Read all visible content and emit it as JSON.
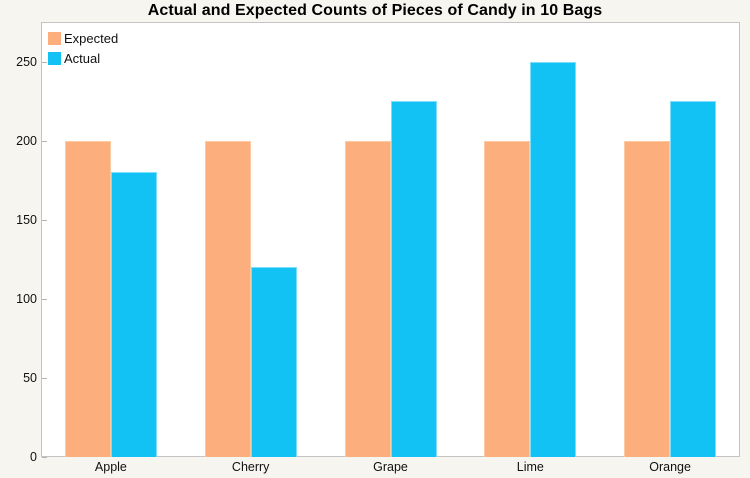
{
  "chart_data": {
    "type": "bar",
    "title": "Actual and Expected Counts of Pieces of Candy in 10 Bags",
    "categories": [
      "Apple",
      "Cherry",
      "Grape",
      "Lime",
      "Orange"
    ],
    "series": [
      {
        "name": "Expected",
        "color": "#FCAE7C",
        "edge": "#FDC9A2",
        "values": [
          200,
          200,
          200,
          200,
          200
        ]
      },
      {
        "name": "Actual",
        "color": "#13C2F4",
        "edge": "#7EDDF8",
        "values": [
          180,
          120,
          225,
          250,
          225
        ]
      }
    ],
    "xlabel": "",
    "ylabel": "",
    "ylim": [
      0,
      275
    ],
    "yticks": [
      0,
      50,
      100,
      150,
      200,
      250
    ],
    "grid": false,
    "legend_position": "top-left"
  },
  "colors": {
    "page_background": "#F7F5F0",
    "plot_background": "#FFFFFF",
    "plot_border": "#C4C4C4",
    "tick_mark": "#B3B3B3",
    "text": "#111111"
  }
}
